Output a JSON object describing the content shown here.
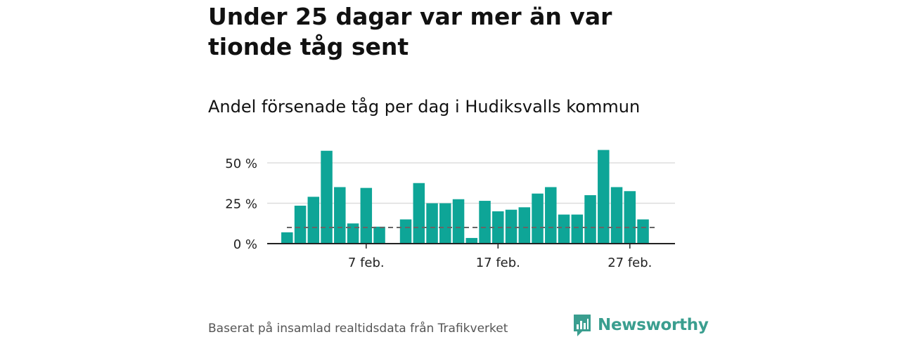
{
  "title": "Under 25 dagar var mer än var tionde tåg sent",
  "subtitle": "Andel försenade tåg per dag i Hudiksvalls kommun",
  "source": "Baserat på insamlad realtidsdata från Trafikverket",
  "logo_text": "Newsworthy",
  "colors": {
    "bar": "#0ea597",
    "reference": "#666666",
    "grid": "#dddddd",
    "axis": "#222222",
    "logo": "#3a9e8f"
  },
  "chart_data": {
    "type": "bar",
    "x_unit": "day of February",
    "x": [
      1,
      2,
      3,
      4,
      5,
      6,
      7,
      8,
      10,
      11,
      12,
      13,
      14,
      15,
      16,
      17,
      18,
      19,
      20,
      21,
      22,
      23,
      24,
      25,
      26,
      27,
      28
    ],
    "values": [
      7,
      23.5,
      29,
      57.5,
      35,
      12.5,
      34.5,
      10.5,
      15,
      37.5,
      25,
      25,
      27.5,
      3.5,
      26.5,
      20,
      21,
      22.5,
      31,
      35,
      18,
      18,
      30,
      58,
      35,
      32.5,
      15
    ],
    "reference_line": 10,
    "ylim": [
      0,
      60
    ],
    "yticks": [
      0,
      25,
      50
    ],
    "ytick_labels": [
      "0 %",
      "25 %",
      "50 %"
    ],
    "xticks": [
      7,
      17,
      27
    ],
    "xtick_labels": [
      "7 feb.",
      "17 feb.",
      "27 feb."
    ],
    "xlabel": "",
    "ylabel": "",
    "grid": true
  }
}
